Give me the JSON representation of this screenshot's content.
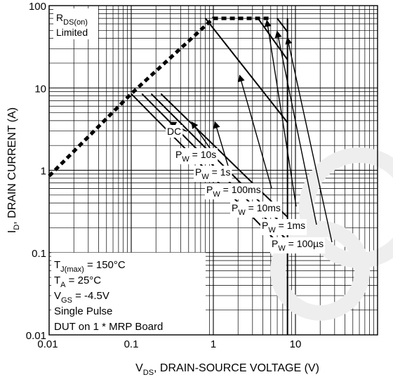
{
  "chart_data": {
    "type": "line",
    "x_scale": "log",
    "y_scale": "log",
    "xlim": [
      0.01,
      100
    ],
    "ylim": [
      0.01,
      100
    ],
    "grid": true,
    "xlabel": {
      "prefix": "V",
      "sub": "DS",
      "suffix": ", DRAIN-SOURCE VOLTAGE (V)"
    },
    "ylabel": {
      "prefix": "I",
      "sub": "D",
      "suffix": ", DRAIN CURRENT (A)"
    },
    "x_ticks": [
      {
        "value": 0.01,
        "label": "0.01"
      },
      {
        "value": 0.1,
        "label": "0.1"
      },
      {
        "value": 1,
        "label": "1"
      },
      {
        "value": 10,
        "label": "10"
      }
    ],
    "y_ticks": [
      {
        "value": 0.01,
        "label": "0.01"
      },
      {
        "value": 0.1,
        "label": "0.1"
      },
      {
        "value": 1,
        "label": "1"
      },
      {
        "value": 10,
        "label": "10"
      },
      {
        "value": 100,
        "label": "100"
      }
    ],
    "rds_limit": {
      "label_prefix": "R",
      "label_sub": "DS(on)",
      "label_line2": "Limited",
      "x": [
        0.01,
        0.1,
        1,
        5
      ],
      "y": [
        0.85,
        8.5,
        70,
        70
      ]
    },
    "max_voltage_x": 8,
    "series": [
      {
        "prefix": "",
        "sub": "",
        "suffix": "DC",
        "x": [
          0.1,
          8
        ],
        "y": [
          8.5,
          0.1
        ],
        "arrow_tip": [
          0.3,
          3.8
        ]
      },
      {
        "prefix": "P",
        "sub": "W",
        "suffix": " = 10s",
        "x": [
          0.135,
          8
        ],
        "y": [
          8.5,
          0.14
        ],
        "arrow_tip": [
          0.55,
          3.8
        ]
      },
      {
        "prefix": "P",
        "sub": "W",
        "suffix": " = 1s",
        "x": [
          0.175,
          8
        ],
        "y": [
          8.5,
          0.19
        ],
        "arrow_tip": [
          1.05,
          3.8
        ]
      },
      {
        "prefix": "P",
        "sub": "W",
        "suffix": " = 100ms",
        "x": [
          0.23,
          8
        ],
        "y": [
          8.5,
          0.27
        ],
        "arrow_tip": [
          2.1,
          14
        ]
      },
      {
        "prefix": "P",
        "sub": "W",
        "suffix": " = 10ms",
        "x": [
          0.8,
          8
        ],
        "y": [
          70,
          3.8
        ],
        "arrow_tip": [
          4.5,
          65
        ]
      },
      {
        "prefix": "P",
        "sub": "W",
        "suffix": " = 1ms",
        "x": [
          3.5,
          8
        ],
        "y": [
          70,
          22
        ],
        "arrow_tip": [
          6,
          48
        ]
      },
      {
        "prefix": "P",
        "sub": "W",
        "suffix": " = 100µs",
        "x": [
          6,
          8
        ],
        "y": [
          70,
          48
        ],
        "arrow_tip": [
          8,
          40
        ]
      }
    ],
    "conditions": [
      {
        "prefix": "T",
        "sub": "J(max)",
        "suffix": " = 150°C"
      },
      {
        "prefix": "T",
        "sub": "A",
        "suffix": " = 25°C"
      },
      {
        "prefix": "V",
        "sub": "GS",
        "suffix": " = -4.5V"
      },
      {
        "prefix": "Single Pulse",
        "sub": "",
        "suffix": ""
      },
      {
        "prefix": "DUT on 1 * MRP Board",
        "sub": "",
        "suffix": ""
      }
    ]
  }
}
